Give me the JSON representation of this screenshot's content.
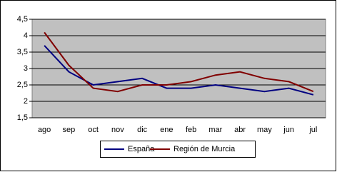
{
  "chart_data": {
    "type": "line",
    "categories": [
      "ago",
      "sep",
      "oct",
      "nov",
      "dic",
      "ene",
      "feb",
      "mar",
      "abr",
      "may",
      "jun",
      "jul"
    ],
    "series": [
      {
        "name": "España",
        "color": "#000080",
        "values": [
          3.7,
          2.9,
          2.5,
          2.6,
          2.7,
          2.4,
          2.4,
          2.5,
          2.4,
          2.3,
          2.4,
          2.2
        ]
      },
      {
        "name": "Región de Murcia",
        "color": "#800000",
        "values": [
          4.1,
          3.1,
          2.4,
          2.3,
          2.5,
          2.5,
          2.6,
          2.8,
          2.9,
          2.7,
          2.6,
          2.3
        ]
      }
    ],
    "ylim": [
      1.5,
      4.5
    ],
    "yticks": [
      {
        "value": 1.5,
        "label": "1,5"
      },
      2,
      {
        "value": 2.5,
        "label": "2,5"
      },
      3,
      {
        "value": 3.5,
        "label": "3,5"
      },
      4,
      {
        "value": 4.5,
        "label": "4,5"
      }
    ],
    "grid": true,
    "legend": "bottom"
  }
}
